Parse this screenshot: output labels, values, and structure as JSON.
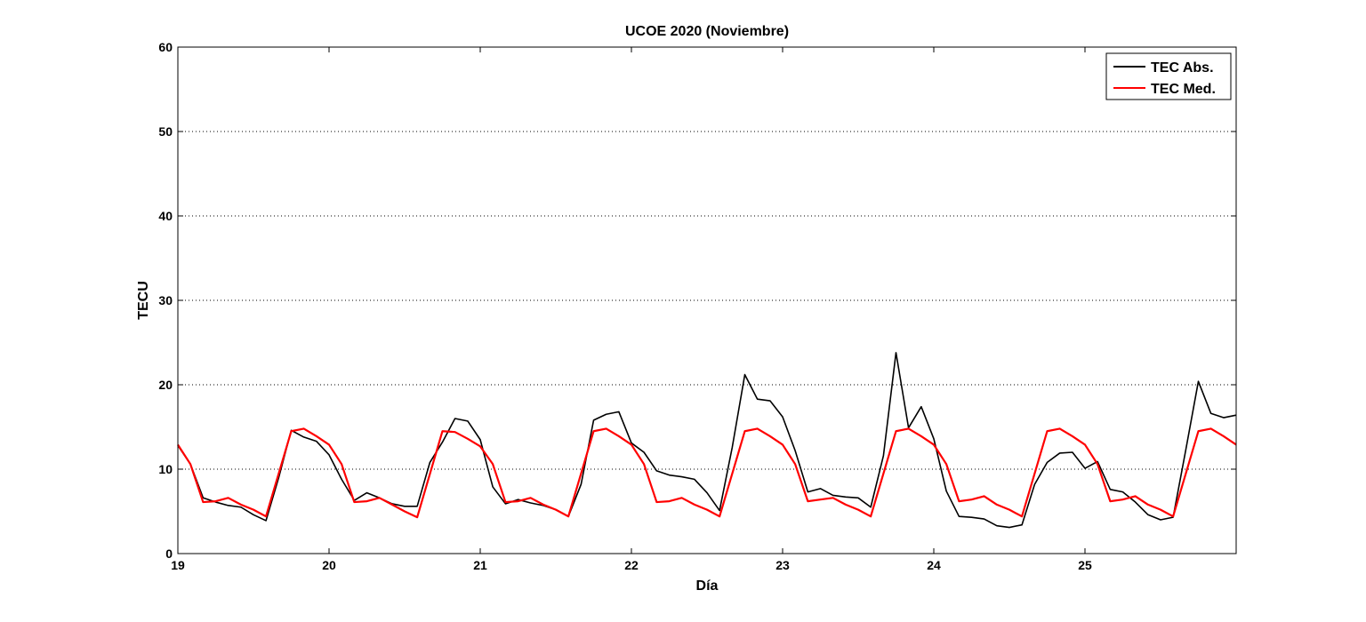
{
  "chart_data": {
    "type": "line",
    "title": "UCOE 2020 (Noviembre)",
    "xlabel": "Día",
    "ylabel": "TECU",
    "xlim": [
      19,
      26
    ],
    "ylim": [
      0,
      60
    ],
    "xticks": [
      19,
      20,
      21,
      22,
      23,
      24,
      25
    ],
    "yticks": [
      0,
      10,
      20,
      30,
      40,
      50,
      60
    ],
    "grid": "y-dotted",
    "legend_position": "top-right",
    "series": [
      {
        "name": "TEC Abs.",
        "color": "#000000",
        "x": [
          19.0,
          19.083,
          19.167,
          19.25,
          19.333,
          19.417,
          19.5,
          19.583,
          19.667,
          19.75,
          19.833,
          19.917,
          20.0,
          20.083,
          20.167,
          20.25,
          20.333,
          20.417,
          20.5,
          20.583,
          20.667,
          20.75,
          20.833,
          20.917,
          21.0,
          21.083,
          21.167,
          21.25,
          21.333,
          21.417,
          21.5,
          21.583,
          21.667,
          21.75,
          21.833,
          21.917,
          22.0,
          22.083,
          22.167,
          22.25,
          22.333,
          22.417,
          22.5,
          22.583,
          22.667,
          22.75,
          22.833,
          22.917,
          23.0,
          23.083,
          23.167,
          23.25,
          23.333,
          23.417,
          23.5,
          23.583,
          23.667,
          23.75,
          23.833,
          23.917,
          24.0,
          24.083,
          24.167,
          24.25,
          24.333,
          24.417,
          24.5,
          24.583,
          24.667,
          24.75,
          24.833,
          24.917,
          25.0,
          25.083,
          25.167,
          25.25,
          25.333,
          25.417,
          25.5,
          25.583,
          25.667,
          25.75,
          25.833,
          25.917,
          26.0
        ],
        "values": [
          12.8,
          10.6,
          6.6,
          6.1,
          5.7,
          5.5,
          4.6,
          3.9,
          9.0,
          14.6,
          13.8,
          13.3,
          11.7,
          8.8,
          6.3,
          7.2,
          6.6,
          5.9,
          5.6,
          5.6,
          10.8,
          13.2,
          16.0,
          15.7,
          13.5,
          7.9,
          5.9,
          6.4,
          6.0,
          5.7,
          5.2,
          4.4,
          8.2,
          15.8,
          16.5,
          16.8,
          13.1,
          12.0,
          9.8,
          9.3,
          9.1,
          8.8,
          7.2,
          5.1,
          12.6,
          21.2,
          18.3,
          18.1,
          16.2,
          12.2,
          7.3,
          7.7,
          6.9,
          6.7,
          6.6,
          5.5,
          11.6,
          23.8,
          14.9,
          17.4,
          13.6,
          7.4,
          4.4,
          4.3,
          4.1,
          3.3,
          3.1,
          3.4,
          8.2,
          10.8,
          11.9,
          12.0,
          10.1,
          10.9,
          7.6,
          7.3,
          6.1,
          4.6,
          4.0,
          4.3,
          12.3,
          20.4,
          16.6,
          16.1,
          16.4
        ]
      },
      {
        "name": "TEC Med.",
        "color": "#ff0000",
        "x": [
          19.0,
          19.083,
          19.167,
          19.25,
          19.333,
          19.417,
          19.5,
          19.583,
          19.75,
          19.833,
          19.917,
          20.0,
          20.083,
          20.167,
          20.25,
          20.333,
          20.417,
          20.5,
          20.583,
          20.75,
          20.833,
          20.917,
          21.0,
          21.083,
          21.167,
          21.25,
          21.333,
          21.417,
          21.5,
          21.583,
          21.75,
          21.833,
          21.917,
          22.0,
          22.083,
          22.167,
          22.25,
          22.333,
          22.417,
          22.5,
          22.583,
          22.75,
          22.833,
          22.917,
          23.0,
          23.083,
          23.167,
          23.25,
          23.333,
          23.417,
          23.5,
          23.583,
          23.75,
          23.833,
          23.917,
          24.0,
          24.083,
          24.167,
          24.25,
          24.333,
          24.417,
          24.5,
          24.583,
          24.75,
          24.833,
          24.917,
          25.0,
          25.083,
          25.167,
          25.25,
          25.333,
          25.417,
          25.5,
          25.583,
          25.75,
          25.833,
          25.917,
          26.0
        ],
        "values": [
          12.9,
          10.6,
          6.1,
          6.2,
          6.6,
          5.8,
          5.2,
          4.4,
          14.5,
          14.8,
          13.9,
          12.9,
          10.6,
          6.1,
          6.2,
          6.6,
          5.8,
          5.0,
          4.3,
          14.5,
          14.4,
          13.6,
          12.7,
          10.6,
          6.1,
          6.2,
          6.6,
          5.8,
          5.2,
          4.4,
          14.5,
          14.8,
          13.9,
          12.9,
          10.6,
          6.1,
          6.2,
          6.6,
          5.8,
          5.2,
          4.4,
          14.5,
          14.8,
          13.9,
          12.9,
          10.6,
          6.2,
          6.4,
          6.6,
          5.8,
          5.2,
          4.4,
          14.5,
          14.8,
          13.9,
          12.9,
          10.6,
          6.2,
          6.4,
          6.8,
          5.8,
          5.2,
          4.4,
          14.5,
          14.8,
          13.9,
          12.9,
          10.6,
          6.2,
          6.4,
          6.8,
          5.8,
          5.2,
          4.4,
          14.5,
          14.8,
          13.9,
          12.9
        ]
      }
    ]
  }
}
